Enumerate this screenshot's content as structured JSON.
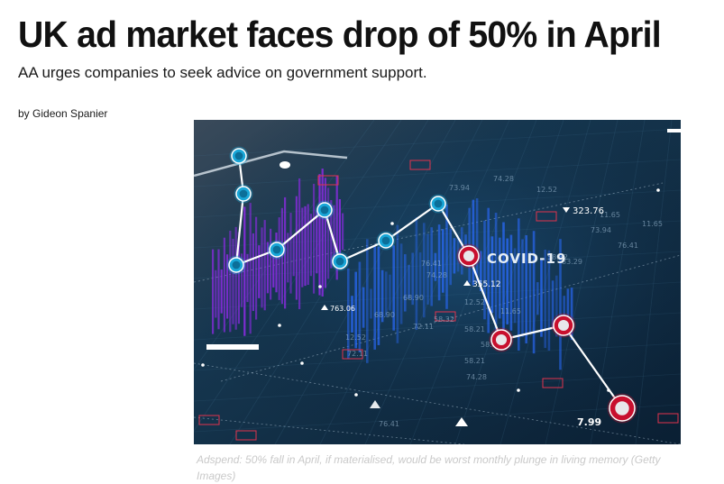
{
  "article": {
    "headline": "UK ad market faces drop of 50% in April",
    "standfirst": "AA urges companies to seek advice on government support.",
    "byline_prefix": "by",
    "author": "Gideon Spanier"
  },
  "image": {
    "main_label": "COVID-19",
    "readouts": [
      "323.76",
      "355.12",
      "763.06",
      "7.99"
    ],
    "grid_numbers": [
      "12.52",
      "11.65",
      "58.21",
      "74.28",
      "68.90",
      "72.11",
      "73.94",
      "76.41",
      "58.32",
      "11.65",
      "12.52",
      "74.28",
      "58.21",
      "76.41",
      "73.94",
      "12.52",
      "68.90",
      "58.32",
      "72.11",
      "74.28",
      "58.21",
      "76.41",
      "11.65",
      "83.29"
    ],
    "colors": {
      "background": "#0d2a40",
      "highlight_node": "#c8102e",
      "normal_node": "#19a7d8",
      "purple_bars": "#8a2be2",
      "blue_bars": "#2a6bff"
    }
  },
  "caption": "Adspend: 50% fall in April, if materialised, would be worst monthly plunge in living memory (Getty Images)"
}
